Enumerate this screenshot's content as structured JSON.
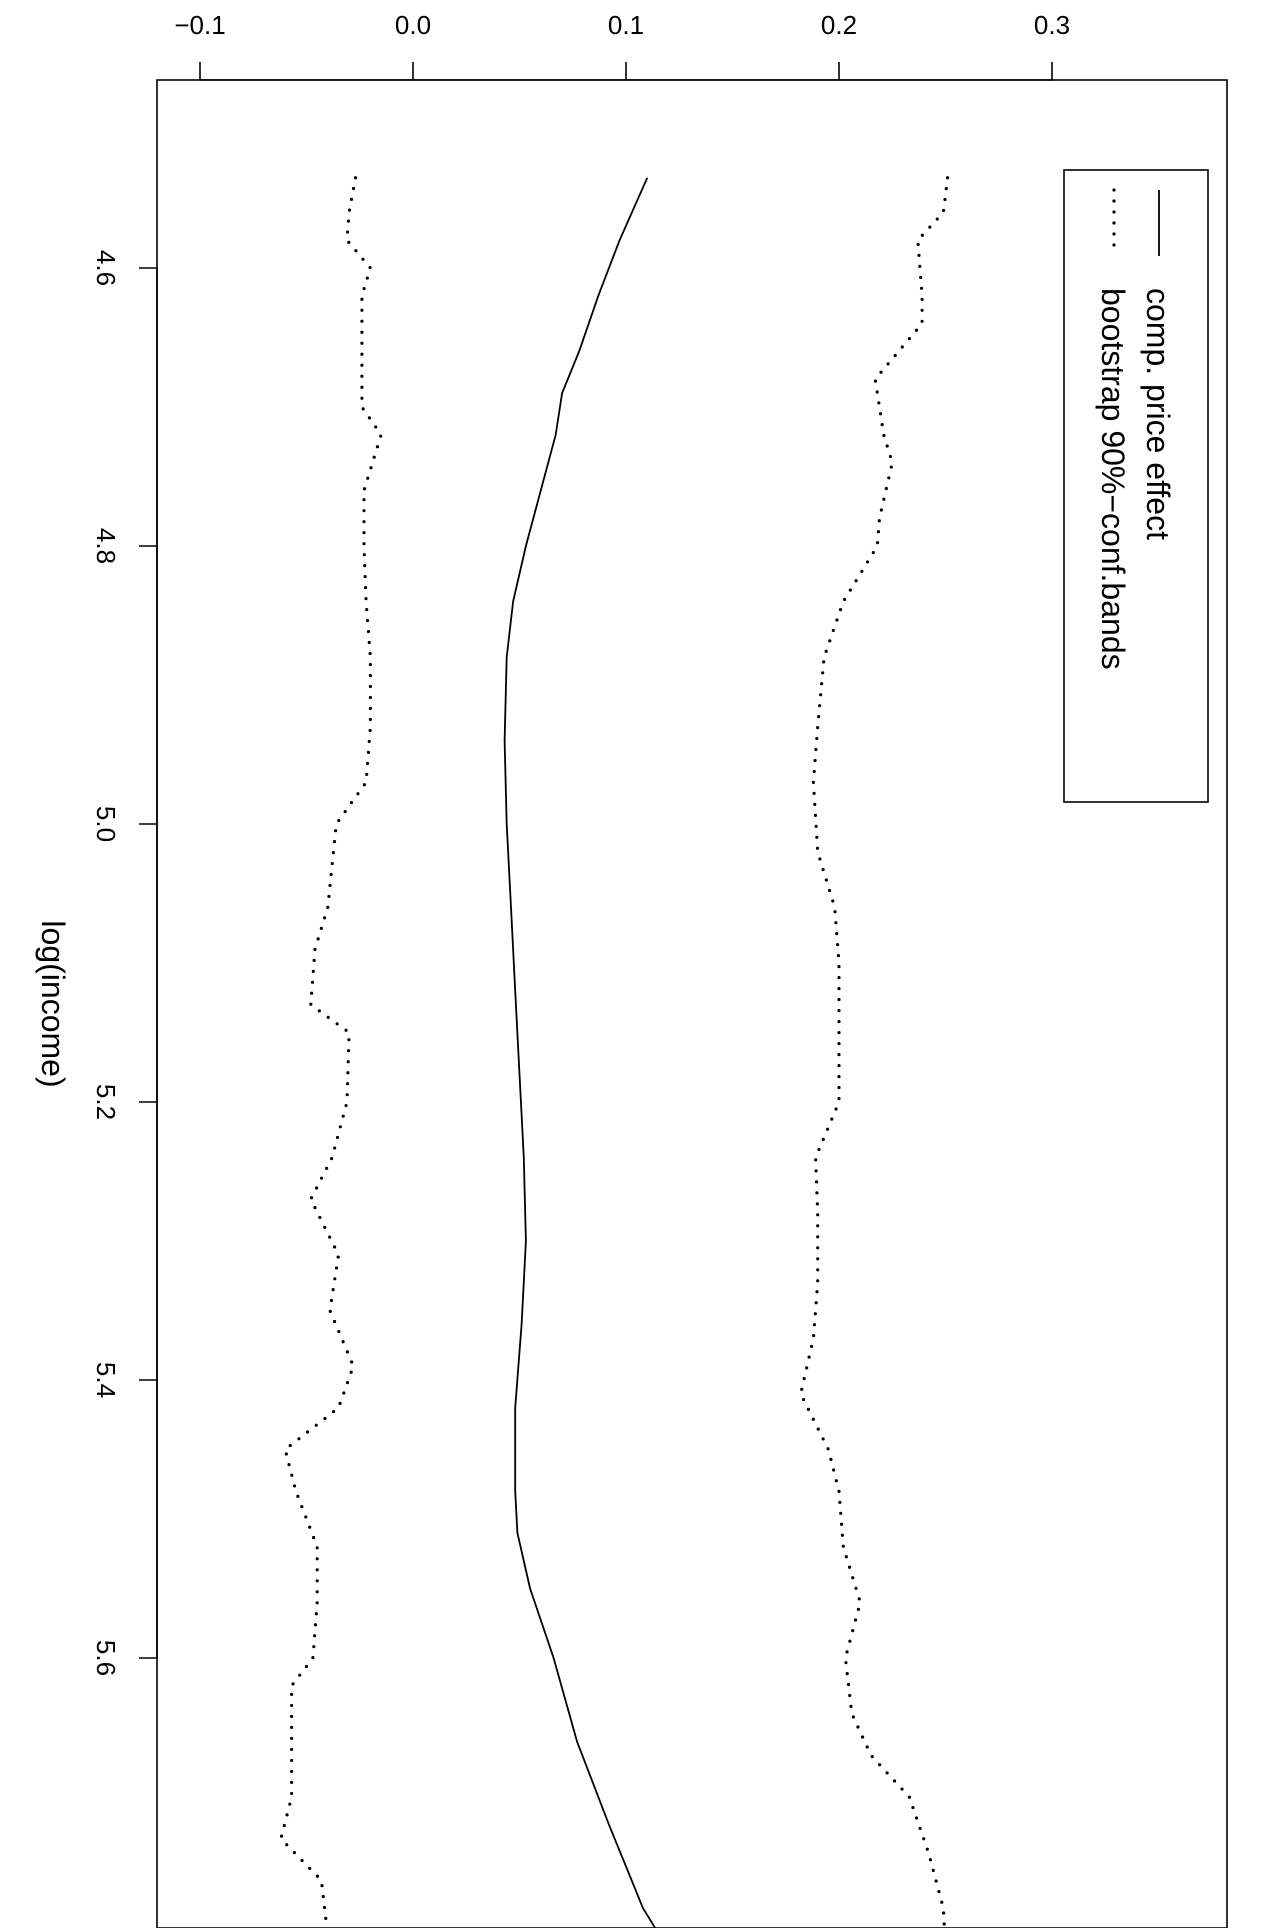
{
  "chart_data": {
    "type": "line",
    "orientation": "rotated-90-clockwise",
    "xlabel": "log(income)",
    "ylabel": "",
    "xlim": [
      4.49,
      5.83
    ],
    "ylim": [
      -0.12,
      0.38
    ],
    "x_ticks": [
      4.6,
      4.8,
      5.0,
      5.2,
      5.4,
      5.6
    ],
    "x_tick_labels": [
      "4.6",
      "4.8",
      "5.0",
      "5.2",
      "5.4",
      "5.6"
    ],
    "y_ticks": [
      -0.1,
      0.0,
      0.1,
      0.2,
      0.3
    ],
    "y_tick_labels": [
      "−0.1",
      "0.0",
      "0.1",
      "0.2",
      "0.3"
    ],
    "grid": false,
    "legend_position": "top-right",
    "legend": [
      "comp. price effect",
      "bootstrap 90%−conf.bands"
    ],
    "series": [
      {
        "name": "comp. price effect",
        "style": "solid",
        "color": "#000000",
        "points": [
          [
            4.535,
            0.11
          ],
          [
            4.58,
            0.097
          ],
          [
            4.62,
            0.087
          ],
          [
            4.66,
            0.078
          ],
          [
            4.69,
            0.07
          ],
          [
            4.72,
            0.067
          ],
          [
            4.76,
            0.06
          ],
          [
            4.8,
            0.053
          ],
          [
            4.84,
            0.047
          ],
          [
            4.88,
            0.044
          ],
          [
            4.94,
            0.043
          ],
          [
            5.0,
            0.044
          ],
          [
            5.06,
            0.046
          ],
          [
            5.12,
            0.048
          ],
          [
            5.18,
            0.05
          ],
          [
            5.24,
            0.052
          ],
          [
            5.3,
            0.053
          ],
          [
            5.36,
            0.051
          ],
          [
            5.42,
            0.048
          ],
          [
            5.48,
            0.048
          ],
          [
            5.51,
            0.049
          ],
          [
            5.55,
            0.055
          ],
          [
            5.6,
            0.066
          ],
          [
            5.66,
            0.077
          ],
          [
            5.72,
            0.092
          ],
          [
            5.78,
            0.108
          ],
          [
            5.82,
            0.124
          ]
        ]
      },
      {
        "name": "bootstrap 90%−conf.bands",
        "style": "dotted",
        "color": "#000000",
        "points": [
          [
            4.535,
            -0.027
          ],
          [
            4.56,
            -0.03
          ],
          [
            4.58,
            -0.031
          ],
          [
            4.6,
            -0.02
          ],
          [
            4.62,
            -0.024
          ],
          [
            4.66,
            -0.024
          ],
          [
            4.7,
            -0.024
          ],
          [
            4.72,
            -0.015
          ],
          [
            4.76,
            -0.023
          ],
          [
            4.8,
            -0.023
          ],
          [
            4.84,
            -0.022
          ],
          [
            4.88,
            -0.02
          ],
          [
            4.93,
            -0.02
          ],
          [
            4.97,
            -0.022
          ],
          [
            5.0,
            -0.036
          ],
          [
            5.06,
            -0.04
          ],
          [
            5.09,
            -0.046
          ],
          [
            5.13,
            -0.048
          ],
          [
            5.15,
            -0.03
          ],
          [
            5.2,
            -0.031
          ],
          [
            5.24,
            -0.038
          ],
          [
            5.27,
            -0.048
          ],
          [
            5.31,
            -0.035
          ],
          [
            5.35,
            -0.039
          ],
          [
            5.39,
            -0.028
          ],
          [
            5.42,
            -0.035
          ],
          [
            5.45,
            -0.06
          ],
          [
            5.48,
            -0.055
          ],
          [
            5.52,
            -0.045
          ],
          [
            5.56,
            -0.045
          ],
          [
            5.6,
            -0.047
          ],
          [
            5.62,
            -0.057
          ],
          [
            5.66,
            -0.057
          ],
          [
            5.7,
            -0.057
          ],
          [
            5.73,
            -0.062
          ],
          [
            5.76,
            -0.043
          ],
          [
            5.8,
            -0.04
          ]
        ]
      },
      {
        "name": "bootstrap 90%−conf.bands",
        "style": "dotted",
        "color": "#000000",
        "points": [
          [
            4.535,
            0.251
          ],
          [
            4.56,
            0.249
          ],
          [
            4.58,
            0.237
          ],
          [
            4.62,
            0.239
          ],
          [
            4.64,
            0.239
          ],
          [
            4.66,
            0.228
          ],
          [
            4.68,
            0.217
          ],
          [
            4.72,
            0.221
          ],
          [
            4.74,
            0.225
          ],
          [
            4.78,
            0.219
          ],
          [
            4.8,
            0.218
          ],
          [
            4.84,
            0.202
          ],
          [
            4.88,
            0.193
          ],
          [
            4.93,
            0.19
          ],
          [
            4.97,
            0.188
          ],
          [
            5.02,
            0.19
          ],
          [
            5.06,
            0.198
          ],
          [
            5.1,
            0.2
          ],
          [
            5.16,
            0.2
          ],
          [
            5.2,
            0.2
          ],
          [
            5.24,
            0.189
          ],
          [
            5.28,
            0.19
          ],
          [
            5.33,
            0.19
          ],
          [
            5.37,
            0.188
          ],
          [
            5.41,
            0.182
          ],
          [
            5.45,
            0.195
          ],
          [
            5.48,
            0.2
          ],
          [
            5.52,
            0.202
          ],
          [
            5.56,
            0.21
          ],
          [
            5.6,
            0.203
          ],
          [
            5.64,
            0.206
          ],
          [
            5.67,
            0.215
          ],
          [
            5.7,
            0.233
          ],
          [
            5.74,
            0.242
          ],
          [
            5.78,
            0.249
          ],
          [
            5.81,
            0.25
          ]
        ]
      }
    ]
  }
}
